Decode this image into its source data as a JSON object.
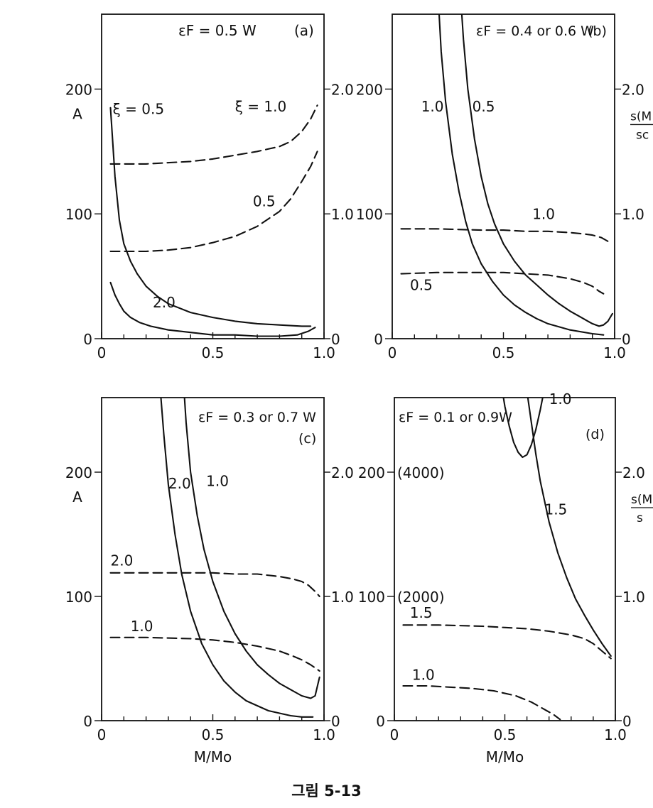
{
  "figure_caption": "그림 5-13",
  "colors": {
    "ink": "#111111",
    "paper": "#ffffff"
  },
  "chart_data": [
    {
      "panel": "(a)",
      "type": "line",
      "title": "εF = 0.5 W",
      "xlabel": "",
      "ylabel": "A",
      "y2label": "",
      "xlim": [
        0,
        1
      ],
      "ylim": [
        0,
        260
      ],
      "y2lim": [
        0,
        2.6
      ],
      "xticks": [
        "0",
        "0.5",
        "1.0"
      ],
      "yticks": [
        "0",
        "100",
        "200"
      ],
      "y2ticks": [
        "0",
        "1.0",
        "2.0"
      ],
      "series": [
        {
          "name": "ξ=0.5",
          "axis": "left",
          "style": "solid",
          "x": [
            0.04,
            0.06,
            0.08,
            0.1,
            0.13,
            0.16,
            0.2,
            0.25,
            0.3,
            0.4,
            0.5,
            0.6,
            0.7,
            0.8,
            0.9,
            0.94
          ],
          "y": [
            185,
            130,
            95,
            76,
            62,
            52,
            42,
            34,
            28,
            21,
            17,
            14,
            12,
            11,
            10,
            10
          ]
        },
        {
          "name": "2.0",
          "axis": "left",
          "style": "solid",
          "x": [
            0.04,
            0.06,
            0.08,
            0.1,
            0.13,
            0.17,
            0.22,
            0.3,
            0.4,
            0.5,
            0.6,
            0.7,
            0.8,
            0.88,
            0.93,
            0.96
          ],
          "y": [
            45,
            35,
            28,
            22,
            17,
            13,
            10,
            7,
            5,
            3,
            3,
            2,
            2,
            3,
            6,
            9
          ]
        },
        {
          "name": "ξ=1.0",
          "axis": "right",
          "style": "dashed",
          "x": [
            0.04,
            0.2,
            0.4,
            0.5,
            0.6,
            0.7,
            0.8,
            0.85,
            0.9,
            0.94,
            0.97
          ],
          "y": [
            1.4,
            1.4,
            1.42,
            1.44,
            1.47,
            1.5,
            1.54,
            1.58,
            1.66,
            1.76,
            1.87
          ]
        },
        {
          "name": "0.5",
          "axis": "right",
          "style": "dashed",
          "x": [
            0.04,
            0.2,
            0.3,
            0.4,
            0.5,
            0.6,
            0.7,
            0.8,
            0.85,
            0.9,
            0.94,
            0.97
          ],
          "y": [
            0.7,
            0.7,
            0.71,
            0.73,
            0.77,
            0.82,
            0.9,
            1.02,
            1.12,
            1.26,
            1.38,
            1.5
          ]
        }
      ],
      "labels": [
        {
          "text": "ξ = 0.5",
          "x": 0.05,
          "y": 180
        },
        {
          "text": "ξ = 1.0",
          "x": 0.6,
          "y": 182
        },
        {
          "text": "0.5",
          "x": 0.68,
          "y": 106
        },
        {
          "text": "2.0",
          "x": 0.23,
          "y": 25
        }
      ]
    },
    {
      "panel": "(b)",
      "type": "line",
      "title": "εF = 0.4 or 0.6 W",
      "xlabel": "",
      "ylabel": "",
      "y2label": "s(M",
      "y2label_denominator": "sc",
      "xlim": [
        0,
        1
      ],
      "ylim": [
        0,
        260
      ],
      "y2lim": [
        0,
        2.6
      ],
      "xticks": [
        "0",
        "0.5",
        "1.0"
      ],
      "yticks": [
        "0",
        "100",
        "200"
      ],
      "y2ticks": [
        "0",
        "1.0",
        "2.0"
      ],
      "series": [
        {
          "name": "1.0",
          "axis": "left",
          "style": "solid",
          "x": [
            0.2,
            0.22,
            0.24,
            0.27,
            0.3,
            0.33,
            0.36,
            0.4,
            0.45,
            0.5,
            0.55,
            0.6,
            0.65,
            0.7,
            0.8,
            0.9,
            0.95
          ],
          "y": [
            295,
            230,
            190,
            148,
            118,
            94,
            76,
            60,
            46,
            35,
            27,
            21,
            16,
            12,
            7,
            4,
            3
          ]
        },
        {
          "name": "0.5",
          "axis": "left",
          "style": "solid",
          "x": [
            0.3,
            0.32,
            0.34,
            0.37,
            0.4,
            0.43,
            0.46,
            0.5,
            0.55,
            0.6,
            0.65,
            0.7,
            0.75,
            0.8,
            0.85,
            0.88,
            0.9,
            0.93,
            0.95,
            0.97,
            0.99
          ],
          "y": [
            295,
            240,
            200,
            160,
            130,
            108,
            92,
            76,
            62,
            51,
            43,
            35,
            28,
            22,
            17,
            14,
            12,
            10,
            11,
            14,
            20
          ]
        },
        {
          "name": "1.0",
          "axis": "right",
          "style": "dashed",
          "x": [
            0.04,
            0.2,
            0.4,
            0.5,
            0.6,
            0.7,
            0.8,
            0.86,
            0.9,
            0.94,
            0.97
          ],
          "y": [
            0.88,
            0.88,
            0.87,
            0.87,
            0.86,
            0.86,
            0.85,
            0.84,
            0.83,
            0.81,
            0.78
          ]
        },
        {
          "name": "0.5",
          "axis": "right",
          "style": "dashed",
          "x": [
            0.04,
            0.2,
            0.4,
            0.5,
            0.6,
            0.7,
            0.8,
            0.86,
            0.9,
            0.93,
            0.95
          ],
          "y": [
            0.52,
            0.53,
            0.53,
            0.53,
            0.52,
            0.51,
            0.48,
            0.45,
            0.42,
            0.38,
            0.36
          ]
        }
      ],
      "labels": [
        {
          "text": "1.0",
          "x": 0.13,
          "y": 182
        },
        {
          "text": "0.5",
          "x": 0.36,
          "y": 182
        },
        {
          "text": "1.0",
          "x": 0.63,
          "y": 96
        },
        {
          "text": "0.5",
          "x": 0.08,
          "y": 39
        }
      ]
    },
    {
      "panel": "(c)",
      "type": "line",
      "title": "εF = 0.3 or 0.7 W",
      "panel_label": "(c)",
      "xlabel": "M/Mo",
      "ylabel": "A",
      "y2label": "",
      "xlim": [
        0,
        1
      ],
      "ylim": [
        0,
        260
      ],
      "y2lim": [
        0,
        2.6
      ],
      "xticks": [
        "0",
        "0.5",
        "1.0"
      ],
      "yticks": [
        "0",
        "100",
        "200"
      ],
      "y2ticks": [
        "0",
        "1.0",
        "2.0"
      ],
      "series": [
        {
          "name": "2.0",
          "axis": "left",
          "style": "solid",
          "x": [
            0.26,
            0.28,
            0.3,
            0.33,
            0.36,
            0.4,
            0.45,
            0.5,
            0.55,
            0.6,
            0.65,
            0.7,
            0.75,
            0.8,
            0.85,
            0.9,
            0.95
          ],
          "y": [
            275,
            230,
            190,
            150,
            118,
            88,
            62,
            45,
            32,
            23,
            16,
            12,
            8,
            6,
            4,
            3,
            3
          ]
        },
        {
          "name": "1.0",
          "axis": "left",
          "style": "solid",
          "x": [
            0.36,
            0.38,
            0.4,
            0.43,
            0.46,
            0.5,
            0.55,
            0.6,
            0.65,
            0.7,
            0.75,
            0.8,
            0.85,
            0.88,
            0.9,
            0.92,
            0.94,
            0.96,
            0.98
          ],
          "y": [
            295,
            240,
            200,
            165,
            138,
            112,
            88,
            70,
            56,
            45,
            37,
            30,
            25,
            22,
            20,
            19,
            18,
            20,
            35
          ]
        },
        {
          "name": "2.0",
          "axis": "right",
          "style": "dashed",
          "x": [
            0.04,
            0.2,
            0.4,
            0.5,
            0.6,
            0.7,
            0.8,
            0.86,
            0.9,
            0.93,
            0.96,
            0.98
          ],
          "y": [
            1.19,
            1.19,
            1.19,
            1.19,
            1.18,
            1.18,
            1.16,
            1.14,
            1.12,
            1.09,
            1.04,
            1.0
          ]
        },
        {
          "name": "1.0",
          "axis": "right",
          "style": "dashed",
          "x": [
            0.04,
            0.2,
            0.4,
            0.5,
            0.6,
            0.7,
            0.8,
            0.86,
            0.9,
            0.94,
            0.98
          ],
          "y": [
            0.67,
            0.67,
            0.66,
            0.65,
            0.63,
            0.6,
            0.56,
            0.52,
            0.49,
            0.45,
            0.4
          ]
        }
      ],
      "labels": [
        {
          "text": "2.0",
          "x": 0.3,
          "y": 187
        },
        {
          "text": "1.0",
          "x": 0.47,
          "y": 189
        },
        {
          "text": "2.0",
          "x": 0.04,
          "y": 125
        },
        {
          "text": "1.0",
          "x": 0.13,
          "y": 72
        }
      ]
    },
    {
      "panel": "(d)",
      "type": "line",
      "title": "εF = 0.1 or 0.9W",
      "panel_label": "(d)",
      "xlabel": "M/Mo",
      "ylabel": "",
      "y2label": "s(M",
      "y2label_denominator": "s",
      "xlim": [
        0,
        1
      ],
      "ylim": [
        0,
        260
      ],
      "y2lim": [
        0,
        2.6
      ],
      "xticks": [
        "0",
        "0.5",
        "1.0"
      ],
      "yticks": [
        "0",
        "100",
        "200"
      ],
      "y2ticks": [
        "0",
        "1.0",
        "2.0"
      ],
      "alt_ytick_labels": [
        {
          "text": "(4000)",
          "y": 200
        },
        {
          "text": "(2000)",
          "y": 100
        }
      ],
      "series": [
        {
          "name": "1.0",
          "axis": "left",
          "style": "solid",
          "x": [
            0.48,
            0.5,
            0.52,
            0.54,
            0.56,
            0.58,
            0.6,
            0.62,
            0.64,
            0.66,
            0.68,
            0.7
          ],
          "y": [
            275,
            253,
            237,
            224,
            216,
            212,
            214,
            222,
            234,
            250,
            268,
            285
          ]
        },
        {
          "name": "1.5",
          "axis": "left",
          "style": "solid",
          "x": [
            0.58,
            0.6,
            0.62,
            0.64,
            0.66,
            0.7,
            0.74,
            0.78,
            0.82,
            0.86,
            0.9,
            0.94,
            0.98
          ],
          "y": [
            295,
            265,
            240,
            215,
            193,
            160,
            135,
            115,
            98,
            85,
            73,
            62,
            52
          ]
        },
        {
          "name": "1.5",
          "axis": "right",
          "style": "dashed",
          "x": [
            0.04,
            0.2,
            0.4,
            0.5,
            0.6,
            0.7,
            0.8,
            0.86,
            0.9,
            0.94,
            0.98
          ],
          "y": [
            0.77,
            0.77,
            0.76,
            0.75,
            0.74,
            0.72,
            0.69,
            0.66,
            0.62,
            0.56,
            0.5
          ]
        },
        {
          "name": "1.0",
          "axis": "right",
          "style": "dashed",
          "x": [
            0.04,
            0.15,
            0.25,
            0.35,
            0.45,
            0.55,
            0.62,
            0.68,
            0.72,
            0.75
          ],
          "y": [
            0.28,
            0.28,
            0.27,
            0.26,
            0.24,
            0.2,
            0.15,
            0.09,
            0.05,
            0.01
          ]
        }
      ],
      "labels": [
        {
          "text": "1.0",
          "x": 0.7,
          "y": 255
        },
        {
          "text": "1.5",
          "x": 0.68,
          "y": 166
        },
        {
          "text": "1.5",
          "x": 0.07,
          "y": 83
        },
        {
          "text": "1.0",
          "x": 0.08,
          "y": 33
        }
      ]
    }
  ]
}
